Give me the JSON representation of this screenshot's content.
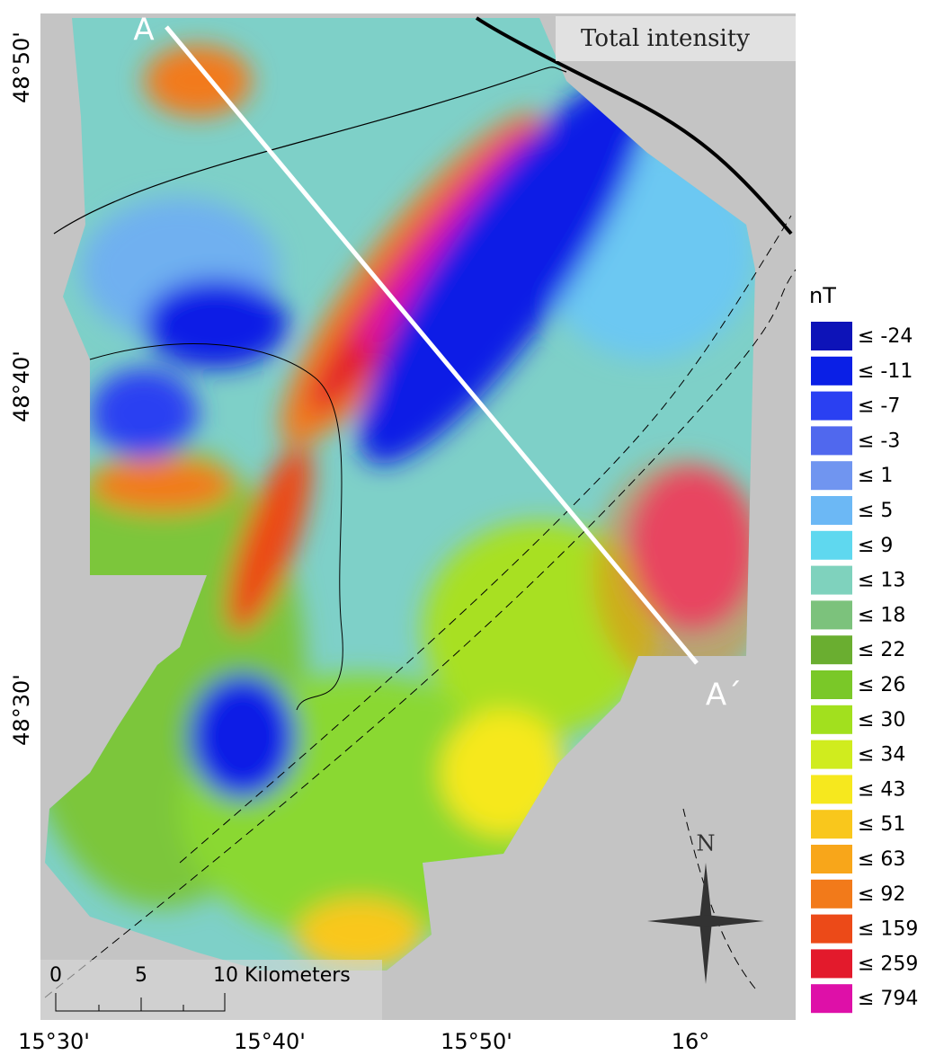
{
  "map": {
    "title": "Total intensity",
    "profile": {
      "start": "A",
      "end": "A´"
    },
    "latitude_labels": [
      "48°50'",
      "48°40'",
      "48°30'"
    ],
    "longitude_labels": [
      "15°30'",
      "15°40'",
      "15°50'",
      "16°"
    ],
    "scale_bar": {
      "labels": [
        "0",
        "5",
        "10 Kilometers"
      ]
    },
    "north_label": "N"
  },
  "legend": {
    "title": "nT",
    "items": [
      {
        "label": "≤ -24",
        "color": "#0d13b8"
      },
      {
        "label": "≤ -11",
        "color": "#0a1fe6"
      },
      {
        "label": "≤ -7",
        "color": "#2a40f2"
      },
      {
        "label": "≤ -3",
        "color": "#5068ee"
      },
      {
        "label": "≤ 1",
        "color": "#7095f0"
      },
      {
        "label": "≤ 5",
        "color": "#6cb8f5"
      },
      {
        "label": "≤ 9",
        "color": "#5fd8ef"
      },
      {
        "label": "≤ 13",
        "color": "#7fd2bd"
      },
      {
        "label": "≤ 18",
        "color": "#7cc27c"
      },
      {
        "label": "≤ 22",
        "color": "#6aae30"
      },
      {
        "label": "≤ 26",
        "color": "#7ac828"
      },
      {
        "label": "≤ 30",
        "color": "#a2e01e"
      },
      {
        "label": "≤ 34",
        "color": "#d0ec1e"
      },
      {
        "label": "≤ 43",
        "color": "#f6e81e"
      },
      {
        "label": "≤ 51",
        "color": "#f9c71c"
      },
      {
        "label": "≤ 63",
        "color": "#f8a61a"
      },
      {
        "label": "≤ 92",
        "color": "#f27a1a"
      },
      {
        "label": "≤ 159",
        "color": "#ec4a18"
      },
      {
        "label": "≤ 259",
        "color": "#e31a2c"
      },
      {
        "label": "≤ 794",
        "color": "#de10a8"
      }
    ]
  }
}
